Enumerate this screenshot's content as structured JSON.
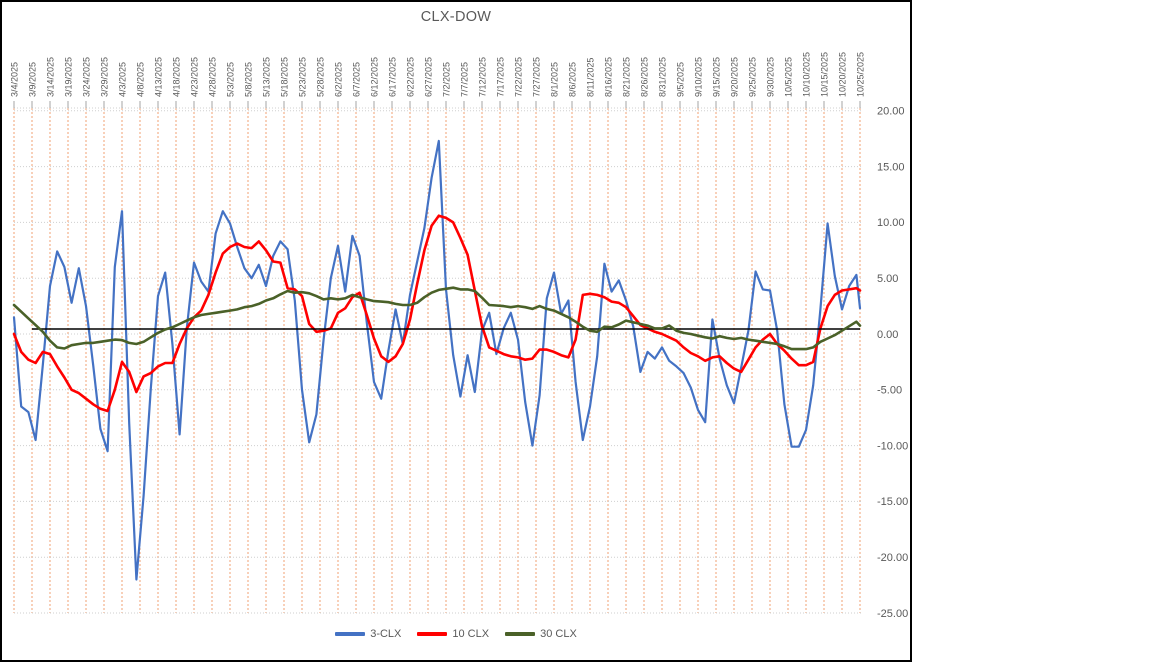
{
  "page": {
    "background": "#FFFFFF"
  },
  "chart": {
    "title": "CLX-DOW",
    "border_color": "#000000",
    "text_color": "#595959",
    "legend": [
      {
        "label": "3-CLX",
        "color": "#4472C4"
      },
      {
        "label": "10 CLX",
        "color": "#FF0000"
      },
      {
        "label": "30 CLX",
        "color": "#4A6128"
      }
    ]
  },
  "chart_data": {
    "type": "line",
    "title": "CLX-DOW",
    "legend_position": "bottom",
    "ylim": [
      -25,
      20.3
    ],
    "grid": {
      "x_color": "#F0A173",
      "x_dash": "2 2",
      "y_color": "#CFCFCF",
      "y_dash": "1 2",
      "tick_color": "#A6A6A6"
    },
    "y_ticks": [
      {
        "label": "20.00",
        "value": 20
      },
      {
        "label": "15.00",
        "value": 15
      },
      {
        "label": "10.00",
        "value": 10
      },
      {
        "label": "5.00",
        "value": 5
      },
      {
        "label": "0.00",
        "value": 0
      },
      {
        "label": "-5.00",
        "value": -5
      },
      {
        "label": "-10.00",
        "value": -10
      },
      {
        "label": "-15.00",
        "value": -15
      },
      {
        "label": "-20.00",
        "value": -20
      },
      {
        "label": "-25.00",
        "value": -25
      }
    ],
    "x_tick_days": [
      0,
      5,
      10,
      15,
      20,
      25,
      30,
      35,
      40,
      45,
      50,
      55,
      60,
      65,
      70,
      75,
      80,
      85,
      90,
      95,
      100,
      105,
      110,
      115,
      120,
      125,
      130,
      135,
      140,
      145,
      150,
      155,
      160,
      165,
      170,
      175,
      180,
      185,
      190,
      195,
      200,
      205,
      210,
      215,
      220,
      225,
      230,
      235
    ],
    "x_tick_labels": [
      "3/4/2025",
      "3/9/2025",
      "3/14/2025",
      "3/19/2025",
      "3/24/2025",
      "3/29/2025",
      "4/3/2025",
      "4/8/2025",
      "4/13/2025",
      "4/18/2025",
      "4/23/2025",
      "4/28/2025",
      "5/3/2025",
      "5/8/2025",
      "5/13/2025",
      "5/18/2025",
      "5/23/2025",
      "5/28/2025",
      "6/2/2025",
      "6/7/2025",
      "6/12/2025",
      "6/17/2025",
      "6/22/2025",
      "6/27/2025",
      "7/2/2025",
      "7/7/2025",
      "7/12/2025",
      "7/17/2025",
      "7/22/2025",
      "7/27/2025",
      "8/1/2025",
      "8/6/2025",
      "8/11/2025",
      "8/16/2025",
      "8/21/2025",
      "8/26/2025",
      "8/31/2025",
      "9/5/2025",
      "9/10/2025",
      "9/15/2025",
      "9/20/2025",
      "9/25/2025",
      "9/30/2025",
      "10/5/2025",
      "10/10/2025",
      "10/15/2025",
      "10/20/2025",
      "10/25/2025"
    ],
    "x_days": [
      0,
      2,
      4,
      6,
      8,
      10,
      12,
      14,
      16,
      18,
      20,
      22,
      24,
      26,
      28,
      30,
      32,
      34,
      36,
      38,
      40,
      42,
      44,
      46,
      48,
      50,
      52,
      54,
      56,
      58,
      60,
      62,
      64,
      66,
      68,
      70,
      72,
      74,
      76,
      78,
      80,
      82,
      84,
      86,
      88,
      90,
      92,
      94,
      96,
      98,
      100,
      102,
      104,
      106,
      108,
      110,
      112,
      114,
      116,
      118,
      120,
      122,
      124,
      126,
      128,
      130,
      132,
      134,
      136,
      138,
      140,
      142,
      144,
      146,
      148,
      150,
      152,
      154,
      156,
      158,
      160,
      162,
      164,
      166,
      168,
      170,
      172,
      174,
      176,
      178,
      180,
      182,
      184,
      186,
      188,
      190,
      192,
      194,
      196,
      198,
      200,
      202,
      204,
      206,
      208,
      210,
      212,
      214,
      216,
      218,
      220,
      222,
      224,
      226,
      228,
      230,
      232,
      234,
      235
    ],
    "x_dates": [
      "3/4/2025",
      "3/6/2025",
      "3/8/2025",
      "3/10/2025",
      "3/12/2025",
      "3/14/2025",
      "3/16/2025",
      "3/18/2025",
      "3/20/2025",
      "3/22/2025",
      "3/24/2025",
      "3/26/2025",
      "3/28/2025",
      "3/30/2025",
      "4/1/2025",
      "4/3/2025",
      "4/5/2025",
      "4/7/2025",
      "4/9/2025",
      "4/11/2025",
      "4/13/2025",
      "4/15/2025",
      "4/17/2025",
      "4/19/2025",
      "4/21/2025",
      "4/23/2025",
      "4/25/2025",
      "4/27/2025",
      "4/29/2025",
      "5/1/2025",
      "5/3/2025",
      "5/5/2025",
      "5/7/2025",
      "5/9/2025",
      "5/11/2025",
      "5/13/2025",
      "5/15/2025",
      "5/17/2025",
      "5/19/2025",
      "5/21/2025",
      "5/23/2025",
      "5/25/2025",
      "5/27/2025",
      "5/29/2025",
      "5/31/2025",
      "6/2/2025",
      "6/4/2025",
      "6/6/2025",
      "6/8/2025",
      "6/10/2025",
      "6/12/2025",
      "6/14/2025",
      "6/16/2025",
      "6/18/2025",
      "6/20/2025",
      "6/22/2025",
      "6/24/2025",
      "6/26/2025",
      "6/28/2025",
      "6/30/2025",
      "7/2/2025",
      "7/4/2025",
      "7/6/2025",
      "7/8/2025",
      "7/10/2025",
      "7/12/2025",
      "7/14/2025",
      "7/16/2025",
      "7/18/2025",
      "7/20/2025",
      "7/22/2025",
      "7/24/2025",
      "7/26/2025",
      "7/28/2025",
      "7/30/2025",
      "8/1/2025",
      "8/3/2025",
      "8/5/2025",
      "8/7/2025",
      "8/9/2025",
      "8/11/2025",
      "8/13/2025",
      "8/15/2025",
      "8/17/2025",
      "8/19/2025",
      "8/21/2025",
      "8/23/2025",
      "8/25/2025",
      "8/27/2025",
      "8/29/2025",
      "8/31/2025",
      "9/2/2025",
      "9/4/2025",
      "9/6/2025",
      "9/8/2025",
      "9/10/2025",
      "9/12/2025",
      "9/14/2025",
      "9/16/2025",
      "9/18/2025",
      "9/20/2025",
      "9/22/2025",
      "9/24/2025",
      "9/26/2025",
      "9/28/2025",
      "9/30/2025",
      "10/2/2025",
      "10/4/2025",
      "10/6/2025",
      "10/8/2025",
      "10/10/2025",
      "10/12/2025",
      "10/14/2025",
      "10/16/2025",
      "10/18/2025",
      "10/20/2025",
      "10/22/2025",
      "10/24/2025",
      "10/25/2025"
    ],
    "series": [
      {
        "name": "3-CLX",
        "color": "#4472C4",
        "width": 2.2,
        "values": [
          1.5,
          -6.5,
          -7.0,
          -9.5,
          -2.8,
          4.3,
          7.4,
          6.0,
          2.8,
          5.9,
          2.5,
          -2.8,
          -8.5,
          -10.5,
          6.0,
          11.0,
          -8.0,
          -22.0,
          -14.5,
          -4.9,
          3.4,
          5.5,
          -0.9,
          -9.0,
          0.5,
          6.4,
          4.7,
          3.8,
          9.0,
          11.0,
          9.9,
          7.8,
          5.9,
          5.0,
          6.2,
          4.3,
          7.0,
          8.3,
          7.6,
          3.0,
          -5.0,
          -9.7,
          -7.2,
          -0.5,
          5.0,
          7.9,
          3.8,
          8.8,
          7.0,
          1.0,
          -4.3,
          -5.8,
          -1.5,
          2.2,
          -0.9,
          3.5,
          6.5,
          9.5,
          14.0,
          17.3,
          4.0,
          -1.9,
          -5.6,
          -1.9,
          -5.2,
          0.3,
          1.9,
          -1.8,
          0.5,
          1.9,
          -0.5,
          -6.1,
          -10.0,
          -5.5,
          3.2,
          5.5,
          1.8,
          3.0,
          -4.3,
          -9.5,
          -6.5,
          -2.0,
          6.3,
          3.8,
          4.8,
          3.0,
          0.7,
          -3.4,
          -1.6,
          -2.2,
          -1.2,
          -2.4,
          -2.9,
          -3.5,
          -4.8,
          -6.8,
          -7.9,
          1.3,
          -2.2,
          -4.6,
          -6.2,
          -3.0,
          0.3,
          5.6,
          4.0,
          3.9,
          0.3,
          -6.3,
          -10.1,
          -10.1,
          -8.6,
          -4.6,
          2.2,
          9.9,
          5.2,
          2.2,
          4.3,
          5.3,
          2.3
        ]
      },
      {
        "name": "10 CLX",
        "color": "#FF0000",
        "width": 2.6,
        "values": [
          0.0,
          -1.6,
          -2.3,
          -2.6,
          -1.6,
          -1.8,
          -2.9,
          -3.9,
          -5.0,
          -5.3,
          -5.8,
          -6.3,
          -6.7,
          -6.9,
          -5.0,
          -2.5,
          -3.4,
          -5.2,
          -3.8,
          -3.5,
          -2.9,
          -2.6,
          -2.6,
          -0.9,
          0.5,
          1.5,
          2.1,
          3.5,
          5.5,
          7.2,
          7.8,
          8.1,
          7.8,
          7.7,
          8.3,
          7.5,
          6.5,
          6.4,
          4.1,
          4.0,
          3.4,
          0.9,
          0.2,
          0.3,
          0.5,
          1.9,
          2.3,
          3.3,
          3.7,
          1.7,
          -0.4,
          -2.0,
          -2.5,
          -2.0,
          -0.9,
          1.3,
          4.5,
          7.5,
          9.7,
          10.6,
          10.4,
          10.0,
          8.6,
          7.1,
          3.9,
          0.7,
          -1.2,
          -1.5,
          -1.8,
          -2.0,
          -2.1,
          -2.3,
          -2.2,
          -1.4,
          -1.4,
          -1.6,
          -1.9,
          -2.1,
          -0.5,
          3.5,
          3.6,
          3.5,
          3.3,
          2.9,
          2.8,
          2.4,
          1.6,
          0.8,
          0.5,
          0.2,
          0.0,
          -0.3,
          -0.6,
          -1.2,
          -1.7,
          -2.0,
          -2.4,
          -2.1,
          -2.0,
          -2.6,
          -3.1,
          -3.4,
          -2.3,
          -1.2,
          -0.5,
          0.0,
          -0.9,
          -1.5,
          -2.2,
          -2.8,
          -2.8,
          -2.5,
          0.5,
          2.5,
          3.5,
          3.9,
          4.0,
          4.1,
          3.9
        ]
      },
      {
        "name": "30 CLX",
        "color": "#4A6128",
        "width": 2.6,
        "values": [
          2.6,
          2.0,
          1.4,
          0.8,
          0.2,
          -0.6,
          -1.2,
          -1.3,
          -1.0,
          -0.9,
          -0.8,
          -0.8,
          -0.7,
          -0.6,
          -0.5,
          -0.55,
          -0.8,
          -0.9,
          -0.7,
          -0.3,
          0.1,
          0.4,
          0.6,
          0.9,
          1.2,
          1.5,
          1.7,
          1.8,
          1.9,
          2.0,
          2.1,
          2.2,
          2.4,
          2.5,
          2.7,
          3.0,
          3.2,
          3.55,
          3.85,
          3.7,
          3.75,
          3.65,
          3.4,
          3.1,
          3.2,
          3.1,
          3.2,
          3.5,
          3.3,
          3.1,
          2.95,
          2.9,
          2.85,
          2.7,
          2.6,
          2.6,
          2.8,
          3.3,
          3.7,
          3.95,
          4.05,
          4.15,
          4.0,
          4.0,
          3.85,
          3.25,
          2.6,
          2.55,
          2.5,
          2.4,
          2.5,
          2.4,
          2.25,
          2.5,
          2.25,
          2.1,
          1.8,
          1.5,
          1.1,
          0.65,
          0.3,
          0.2,
          0.65,
          0.6,
          0.85,
          1.2,
          1.05,
          0.9,
          0.75,
          0.5,
          0.5,
          0.75,
          0.3,
          0.1,
          0.0,
          -0.15,
          -0.3,
          -0.4,
          -0.2,
          -0.35,
          -0.45,
          -0.35,
          -0.5,
          -0.6,
          -0.7,
          -0.8,
          -0.9,
          -1.1,
          -1.35,
          -1.35,
          -1.35,
          -1.2,
          -0.7,
          -0.4,
          -0.1,
          0.3,
          0.7,
          1.1,
          0.75
        ]
      }
    ],
    "reference_line": {
      "name": "zero-baseline",
      "color": "#000000",
      "value": 0.45,
      "start_day": 5,
      "end_day": 235,
      "width": 1.5
    }
  }
}
